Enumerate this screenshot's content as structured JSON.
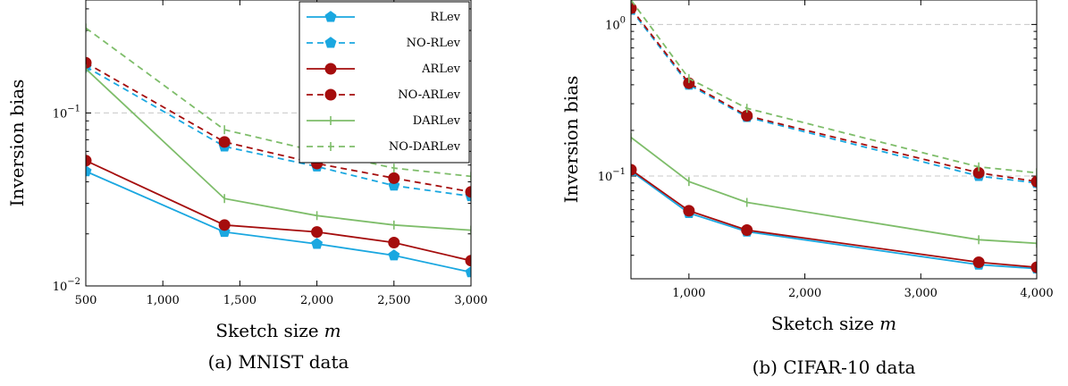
{
  "chart_data": [
    {
      "type": "line",
      "caption": "(a) MNIST data",
      "xlabel": "Sketch size",
      "xlabel_var": "m",
      "ylabel": "Inversion bias",
      "yscale": "log",
      "xlim": [
        500,
        3000
      ],
      "ylim": [
        0.01,
        0.45
      ],
      "x_ticks": [
        500,
        1000,
        1500,
        2000,
        2500,
        3000
      ],
      "x_tick_labels": [
        "500",
        "1,000",
        "1,500",
        "2,000",
        "2,500",
        "3,000"
      ],
      "y_ticks": [
        0.01,
        0.1
      ],
      "y_tick_base": [
        "10",
        "10"
      ],
      "y_tick_exp": [
        "−2",
        "−1"
      ],
      "grid": "horizontal-dashed",
      "legend_position": "top-right",
      "x": [
        500,
        1400,
        2000,
        2500,
        3000
      ],
      "series": [
        {
          "name": "RLev",
          "color": "#1aa7e0",
          "dash": "solid",
          "marker": "pentagon",
          "values": [
            0.046,
            0.0205,
            0.0175,
            0.015,
            0.012
          ]
        },
        {
          "name": "NO-RLev",
          "color": "#1aa7e0",
          "dash": "dashed",
          "marker": "pentagon",
          "values": [
            0.185,
            0.064,
            0.049,
            0.038,
            0.033
          ]
        },
        {
          "name": "ARLev",
          "color": "#a50d0d",
          "dash": "solid",
          "marker": "circle",
          "values": [
            0.053,
            0.0225,
            0.0205,
            0.0178,
            0.014
          ]
        },
        {
          "name": "NO-ARLev",
          "color": "#a50d0d",
          "dash": "dashed",
          "marker": "circle",
          "values": [
            0.195,
            0.068,
            0.051,
            0.042,
            0.035
          ]
        },
        {
          "name": "DARLev",
          "color": "#7ebd6a",
          "dash": "solid",
          "marker": "bar",
          "values": [
            0.18,
            0.032,
            0.0255,
            0.0225,
            0.021
          ]
        },
        {
          "name": "NO-DARLev",
          "color": "#7ebd6a",
          "dash": "dashed",
          "marker": "bar",
          "values": [
            0.31,
            0.08,
            0.06,
            0.048,
            0.043
          ]
        }
      ]
    },
    {
      "type": "line",
      "caption": "(b) CIFAR-10 data",
      "xlabel": "Sketch size",
      "xlabel_var": "m",
      "ylabel": "Inversion bias",
      "yscale": "log",
      "xlim": [
        500,
        4000
      ],
      "ylim": [
        0.021,
        1.45
      ],
      "x_ticks": [
        1000,
        2000,
        3000,
        4000
      ],
      "x_tick_labels": [
        "1,000",
        "2,000",
        "3,000",
        "4,000"
      ],
      "y_ticks": [
        0.1,
        1
      ],
      "y_tick_base": [
        "10",
        "10"
      ],
      "y_tick_exp": [
        "−1",
        "0"
      ],
      "grid": "horizontal-dashed",
      "legend_position": "none",
      "x": [
        500,
        1000,
        1500,
        3500,
        4000
      ],
      "series": [
        {
          "name": "RLev",
          "color": "#1aa7e0",
          "dash": "solid",
          "marker": "pentagon",
          "values": [
            0.108,
            0.057,
            0.043,
            0.026,
            0.0245
          ]
        },
        {
          "name": "NO-RLev",
          "color": "#1aa7e0",
          "dash": "dashed",
          "marker": "pentagon",
          "values": [
            1.25,
            0.4,
            0.245,
            0.1,
            0.09
          ]
        },
        {
          "name": "ARLev",
          "color": "#a50d0d",
          "dash": "solid",
          "marker": "circle",
          "values": [
            0.11,
            0.059,
            0.044,
            0.027,
            0.025
          ]
        },
        {
          "name": "NO-ARLev",
          "color": "#a50d0d",
          "dash": "dashed",
          "marker": "circle",
          "values": [
            1.28,
            0.41,
            0.25,
            0.105,
            0.092
          ]
        },
        {
          "name": "DARLev",
          "color": "#7ebd6a",
          "dash": "solid",
          "marker": "bar",
          "values": [
            0.18,
            0.092,
            0.067,
            0.038,
            0.036
          ]
        },
        {
          "name": "NO-DARLev",
          "color": "#7ebd6a",
          "dash": "dashed",
          "marker": "bar",
          "values": [
            1.45,
            0.44,
            0.28,
            0.115,
            0.105
          ]
        }
      ]
    }
  ]
}
